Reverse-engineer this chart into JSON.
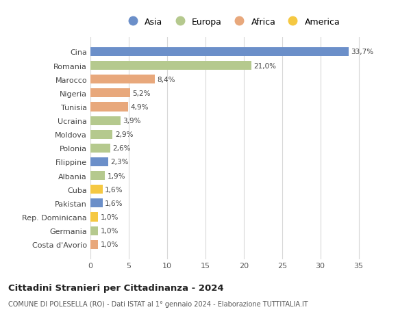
{
  "categories": [
    "Costa d'Avorio",
    "Germania",
    "Rep. Dominicana",
    "Pakistan",
    "Cuba",
    "Albania",
    "Filippine",
    "Polonia",
    "Moldova",
    "Ucraina",
    "Tunisia",
    "Nigeria",
    "Marocco",
    "Romania",
    "Cina"
  ],
  "values": [
    1.0,
    1.0,
    1.0,
    1.6,
    1.6,
    1.9,
    2.3,
    2.6,
    2.9,
    3.9,
    4.9,
    5.2,
    8.4,
    21.0,
    33.7
  ],
  "colors": [
    "#e8a87c",
    "#b5c98e",
    "#f5c842",
    "#6b8fc9",
    "#f5c842",
    "#b5c98e",
    "#6b8fc9",
    "#b5c98e",
    "#b5c98e",
    "#b5c98e",
    "#e8a87c",
    "#e8a87c",
    "#e8a87c",
    "#b5c98e",
    "#6b8fc9"
  ],
  "continents": [
    "Africa",
    "Europa",
    "America",
    "Asia",
    "America",
    "Europa",
    "Asia",
    "Europa",
    "Europa",
    "Europa",
    "Africa",
    "Africa",
    "Africa",
    "Europa",
    "Asia"
  ],
  "legend_labels": [
    "Asia",
    "Europa",
    "Africa",
    "America"
  ],
  "legend_colors": [
    "#6b8fc9",
    "#b5c98e",
    "#e8a87c",
    "#f5c842"
  ],
  "title": "Cittadini Stranieri per Cittadinanza - 2024",
  "subtitle1": "COMUNE DI POLESELLA (RO) - Dati ISTAT al 1° gennaio 2024 - Elaborazione TUTTITALIA.IT",
  "xlim": [
    0,
    37
  ],
  "xticks": [
    0,
    5,
    10,
    15,
    20,
    25,
    30,
    35
  ],
  "background_color": "#ffffff",
  "grid_color": "#d8d8d8",
  "bar_height": 0.65
}
